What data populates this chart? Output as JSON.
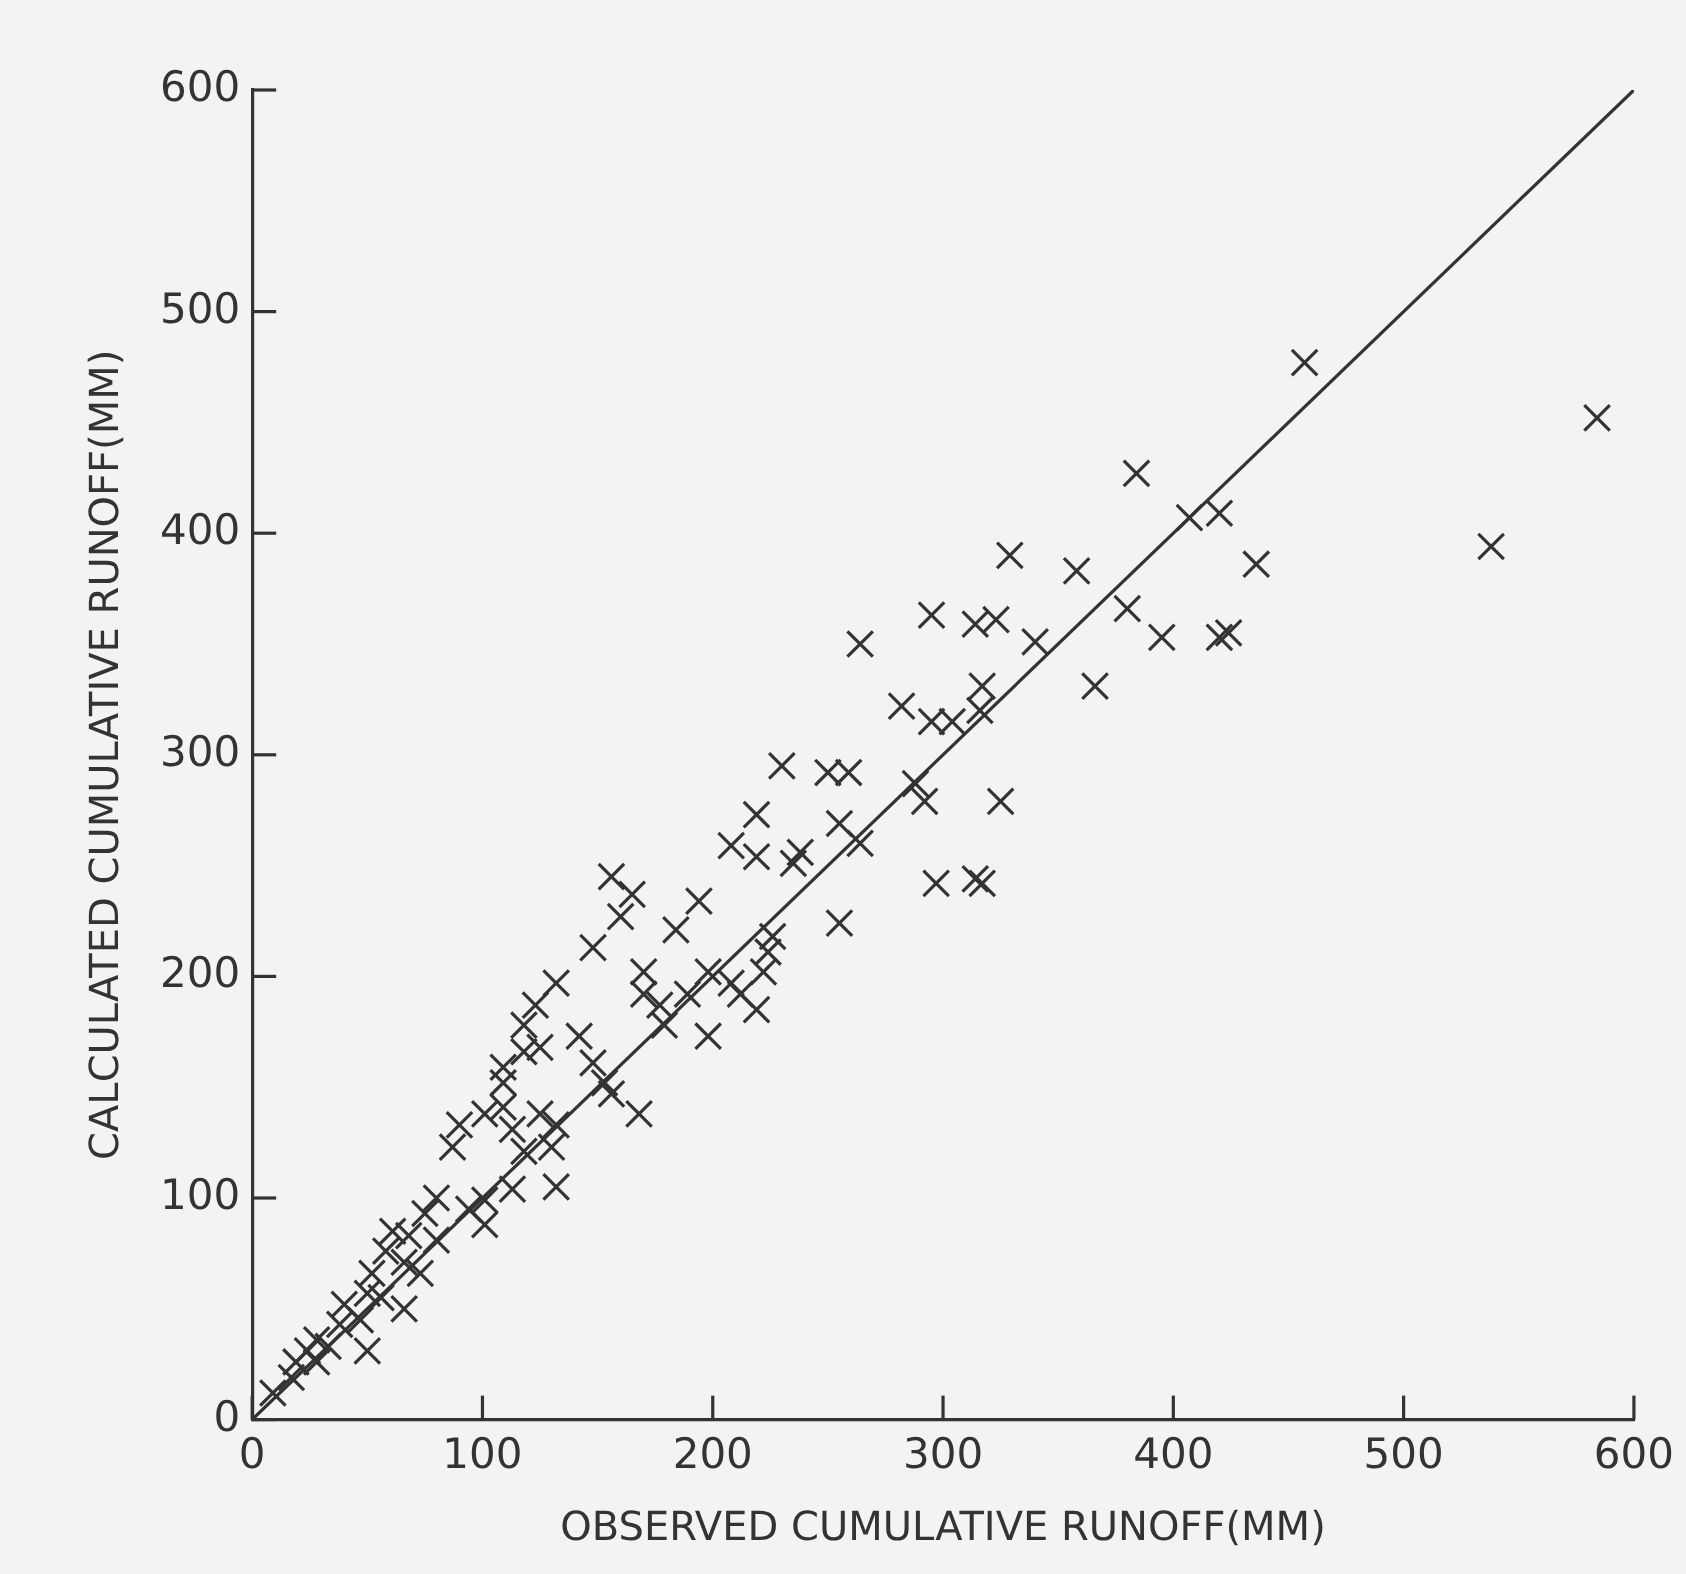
{
  "chart_data": {
    "type": "scatter",
    "xlabel": "OBSERVED CUMULATIVE RUNOFF(MM)",
    "ylabel": "CALCULATED CUMULATIVE RUNOFF(MM)",
    "xlim": [
      0,
      600
    ],
    "ylim": [
      0,
      600
    ],
    "xticks": [
      0,
      100,
      200,
      300,
      400,
      500,
      600
    ],
    "yticks": [
      0,
      100,
      200,
      300,
      400,
      500,
      600
    ],
    "grid": false,
    "legend": false,
    "marker": "cross",
    "series": [
      {
        "color": "#333333",
        "x": [
          457,
          584,
          384,
          407,
          420,
          436,
          329,
          358,
          538,
          380,
          340,
          395,
          420,
          424,
          264,
          295,
          314,
          323,
          366,
          317,
          282,
          295,
          304,
          316,
          230,
          259,
          250,
          288,
          292,
          325,
          264,
          255,
          297,
          314,
          317,
          255,
          219,
          219,
          208,
          238,
          235,
          156,
          165,
          194,
          184,
          148,
          160,
          170,
          170,
          179,
          177,
          189,
          198,
          198,
          208,
          212,
          222,
          224,
          219,
          226,
          168,
          132,
          123,
          118,
          142,
          148,
          153,
          156,
          109,
          109,
          101,
          90,
          87,
          113,
          125,
          132,
          130,
          118,
          132,
          113,
          101,
          94,
          101,
          80,
          75,
          80,
          68,
          61,
          58,
          66,
          73,
          66,
          52,
          50,
          56,
          50,
          47,
          40,
          33,
          28,
          24,
          19,
          17,
          9,
          28,
          38,
          109,
          118,
          125
        ],
        "values": [
          477,
          452,
          427,
          407,
          409,
          386,
          390,
          383,
          394,
          366,
          351,
          353,
          353,
          355,
          350,
          363,
          359,
          361,
          331,
          331,
          322,
          315,
          315,
          320,
          295,
          292,
          292,
          287,
          279,
          279,
          260,
          269,
          242,
          244,
          242,
          224,
          273,
          254,
          259,
          256,
          251,
          245,
          237,
          234,
          221,
          213,
          227,
          202,
          192,
          178,
          187,
          192,
          173,
          202,
          197,
          192,
          202,
          211,
          185,
          218,
          138,
          197,
          187,
          178,
          173,
          161,
          152,
          147,
          152,
          141,
          138,
          133,
          123,
          131,
          138,
          133,
          123,
          121,
          105,
          104,
          99,
          95,
          88,
          100,
          93,
          81,
          83,
          85,
          76,
          71,
          66,
          50,
          66,
          57,
          55,
          31,
          45,
          52,
          33,
          26,
          31,
          26,
          19,
          12,
          36,
          43,
          159,
          166,
          168
        ]
      },
      {
        "type": "line",
        "color": "#333333",
        "marker": "none",
        "line_style": "solid",
        "x": [
          0,
          600
        ],
        "values": [
          0,
          600
        ]
      }
    ]
  }
}
